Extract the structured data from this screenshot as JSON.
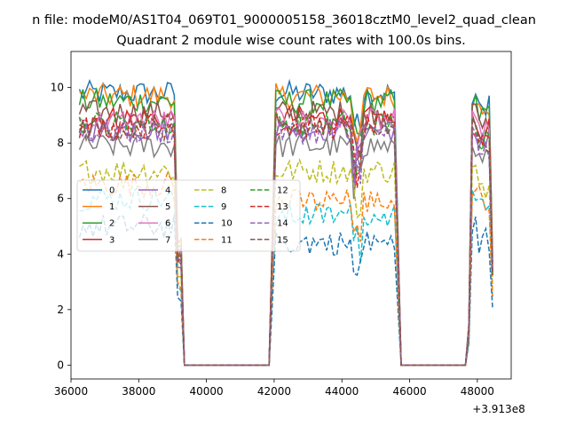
{
  "chart_data": {
    "type": "line",
    "suptitle": "n file: modeM0/AS1T04_069T01_9000005158_36018cztM0_level2_quad_clean",
    "title": "Quadrant 2 module wise count rates with 100.0s bins.",
    "xlabel": "",
    "ylabel": "",
    "x_offset_label": "+3.913e8",
    "xlim": [
      36000,
      49000
    ],
    "ylim": [
      -0.5,
      11.3
    ],
    "x_ticks": [
      36000,
      38000,
      40000,
      42000,
      44000,
      46000,
      48000
    ],
    "x_tick_labels": [
      "36000",
      "38000",
      "40000",
      "42000",
      "44000",
      "46000",
      "48000"
    ],
    "y_ticks": [
      0,
      2,
      4,
      6,
      8,
      10
    ],
    "y_tick_labels": [
      "0",
      "2",
      "4",
      "6",
      "8",
      "10"
    ],
    "grid": false,
    "legend_position": "center-left",
    "legend_columns": 4,
    "x_range_bins": {
      "start": 36250,
      "step": 100
    },
    "gaps": [
      [
        39300,
        41900
      ],
      [
        45700,
        47700
      ]
    ],
    "series": [
      {
        "name": "0",
        "color": "#1f77b4",
        "dash": "solid",
        "level": 9.8
      },
      {
        "name": "1",
        "color": "#ff7f0e",
        "dash": "solid",
        "level": 9.7
      },
      {
        "name": "2",
        "color": "#2ca02c",
        "dash": "solid",
        "level": 9.5
      },
      {
        "name": "3",
        "color": "#d62728",
        "dash": "solid",
        "level": 8.9
      },
      {
        "name": "4",
        "color": "#9467bd",
        "dash": "solid",
        "level": 8.5
      },
      {
        "name": "5",
        "color": "#8c564b",
        "dash": "solid",
        "level": 9.1
      },
      {
        "name": "6",
        "color": "#e377c2",
        "dash": "solid",
        "level": 8.8
      },
      {
        "name": "7",
        "color": "#7f7f7f",
        "dash": "solid",
        "level": 7.9
      },
      {
        "name": "8",
        "color": "#bcbd22",
        "dash": "dashed",
        "level": 7.0
      },
      {
        "name": "9",
        "color": "#17becf",
        "dash": "dashed",
        "level": 6.0
      },
      {
        "name": "10",
        "color": "#1f77b4",
        "dash": "dashed",
        "level": 5.0
      },
      {
        "name": "11",
        "color": "#ff7f0e",
        "dash": "dashed",
        "level": 6.5
      },
      {
        "name": "12",
        "color": "#2ca02c",
        "dash": "dashed",
        "level": 8.7
      },
      {
        "name": "13",
        "color": "#d62728",
        "dash": "dashed",
        "level": 8.6
      },
      {
        "name": "14",
        "color": "#9467bd",
        "dash": "dashed",
        "level": 8.4
      },
      {
        "name": "15",
        "color": "#8c564b",
        "dash": "dashed",
        "level": 8.5
      }
    ]
  }
}
